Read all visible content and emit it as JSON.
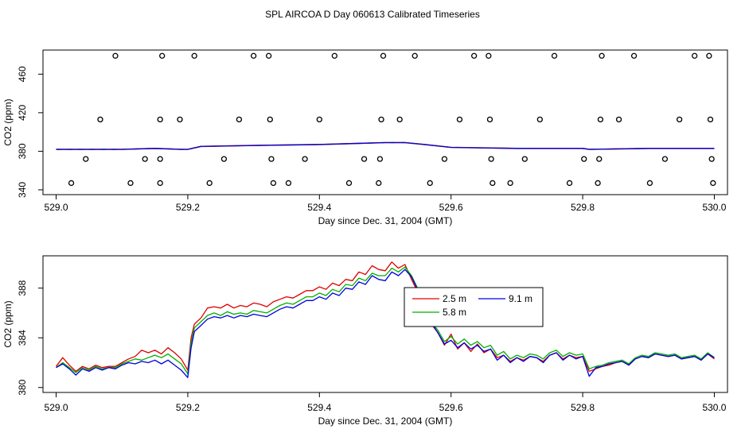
{
  "title": "SPL AIRCOA D  Day 060613  Calibrated Timeseries",
  "colors": {
    "red": "#e00000",
    "green": "#00b000",
    "blue": "#0000e0",
    "axis": "#000000"
  },
  "chart_data": [
    {
      "type": "scatter+line",
      "xlabel": "Day since Dec. 31, 2004 (GMT)",
      "ylabel": "CO2 (ppm)",
      "xlim": [
        528.98,
        530.02
      ],
      "ylim": [
        335,
        485
      ],
      "x_ticks": [
        529.0,
        529.2,
        529.4,
        529.6,
        529.8,
        530.0
      ],
      "x_tick_labels": [
        "529.0",
        "529.2",
        "529.4",
        "529.6",
        "529.8",
        "530.0"
      ],
      "y_ticks": [
        340,
        380,
        420,
        460
      ],
      "y_tick_labels": [
        "340",
        "380",
        "420",
        "460"
      ],
      "calibration_points": [
        {
          "x": 529.023,
          "y": 347
        },
        {
          "x": 529.045,
          "y": 372
        },
        {
          "x": 529.067,
          "y": 413
        },
        {
          "x": 529.09,
          "y": 479
        },
        {
          "x": 529.113,
          "y": 347
        },
        {
          "x": 529.135,
          "y": 372
        },
        {
          "x": 529.158,
          "y": 413
        },
        {
          "x": 529.161,
          "y": 479
        },
        {
          "x": 529.158,
          "y": 372
        },
        {
          "x": 529.158,
          "y": 347
        },
        {
          "x": 529.188,
          "y": 413
        },
        {
          "x": 529.21,
          "y": 479
        },
        {
          "x": 529.233,
          "y": 347
        },
        {
          "x": 529.255,
          "y": 372
        },
        {
          "x": 529.278,
          "y": 413
        },
        {
          "x": 529.3,
          "y": 479
        },
        {
          "x": 529.323,
          "y": 479
        },
        {
          "x": 529.325,
          "y": 413
        },
        {
          "x": 529.327,
          "y": 372
        },
        {
          "x": 529.33,
          "y": 347
        },
        {
          "x": 529.353,
          "y": 347
        },
        {
          "x": 529.378,
          "y": 372
        },
        {
          "x": 529.4,
          "y": 413
        },
        {
          "x": 529.423,
          "y": 479
        },
        {
          "x": 529.445,
          "y": 347
        },
        {
          "x": 529.468,
          "y": 372
        },
        {
          "x": 529.49,
          "y": 347
        },
        {
          "x": 529.492,
          "y": 372
        },
        {
          "x": 529.494,
          "y": 413
        },
        {
          "x": 529.497,
          "y": 479
        },
        {
          "x": 529.522,
          "y": 413
        },
        {
          "x": 529.545,
          "y": 479
        },
        {
          "x": 529.568,
          "y": 347
        },
        {
          "x": 529.59,
          "y": 372
        },
        {
          "x": 529.613,
          "y": 413
        },
        {
          "x": 529.635,
          "y": 479
        },
        {
          "x": 529.657,
          "y": 479
        },
        {
          "x": 529.659,
          "y": 413
        },
        {
          "x": 529.661,
          "y": 372
        },
        {
          "x": 529.663,
          "y": 347
        },
        {
          "x": 529.69,
          "y": 347
        },
        {
          "x": 529.712,
          "y": 372
        },
        {
          "x": 529.735,
          "y": 413
        },
        {
          "x": 529.757,
          "y": 479
        },
        {
          "x": 529.78,
          "y": 347
        },
        {
          "x": 529.802,
          "y": 372
        },
        {
          "x": 529.823,
          "y": 347
        },
        {
          "x": 529.825,
          "y": 372
        },
        {
          "x": 529.827,
          "y": 413
        },
        {
          "x": 529.829,
          "y": 479
        },
        {
          "x": 529.855,
          "y": 413
        },
        {
          "x": 529.878,
          "y": 479
        },
        {
          "x": 529.902,
          "y": 347
        },
        {
          "x": 529.925,
          "y": 372
        },
        {
          "x": 529.947,
          "y": 413
        },
        {
          "x": 529.97,
          "y": 479
        },
        {
          "x": 529.992,
          "y": 479
        },
        {
          "x": 529.994,
          "y": 413
        },
        {
          "x": 529.996,
          "y": 372
        },
        {
          "x": 529.998,
          "y": 347
        }
      ],
      "trace": {
        "x": [
          529.0,
          529.05,
          529.1,
          529.15,
          529.19,
          529.2,
          529.22,
          529.3,
          529.4,
          529.45,
          529.5,
          529.53,
          529.56,
          529.6,
          529.7,
          529.8,
          529.81,
          529.9,
          530.0
        ],
        "y": [
          382,
          382,
          382,
          383,
          382,
          382,
          385,
          386,
          387,
          388,
          389,
          389,
          387,
          384,
          383,
          383,
          382,
          383,
          383
        ]
      }
    },
    {
      "type": "line",
      "xlabel": "Day since Dec. 31, 2004 (GMT)",
      "ylabel": "CO2 (ppm)",
      "xlim": [
        528.98,
        530.02
      ],
      "ylim": [
        379.6,
        390.6
      ],
      "x_ticks": [
        529.0,
        529.2,
        529.4,
        529.6,
        529.8,
        530.0
      ],
      "x_tick_labels": [
        "529.0",
        "529.2",
        "529.4",
        "529.6",
        "529.8",
        "530.0"
      ],
      "y_ticks": [
        380,
        384,
        388
      ],
      "y_tick_labels": [
        "380",
        "384",
        "388"
      ],
      "legend_position": "center-right",
      "series": [
        {
          "name": "2.5 m",
          "color": "#e00000",
          "x": [
            529.0,
            529.01,
            529.02,
            529.03,
            529.04,
            529.05,
            529.06,
            529.07,
            529.08,
            529.09,
            529.1,
            529.11,
            529.12,
            529.13,
            529.14,
            529.15,
            529.16,
            529.17,
            529.18,
            529.19,
            529.2,
            529.205,
            529.21,
            529.22,
            529.23,
            529.24,
            529.25,
            529.26,
            529.27,
            529.28,
            529.29,
            529.3,
            529.31,
            529.32,
            529.33,
            529.34,
            529.35,
            529.36,
            529.37,
            529.38,
            529.39,
            529.4,
            529.41,
            529.42,
            529.43,
            529.44,
            529.45,
            529.46,
            529.47,
            529.48,
            529.49,
            529.5,
            529.51,
            529.52,
            529.53,
            529.54,
            529.55,
            529.56,
            529.57,
            529.58,
            529.59,
            529.6,
            529.61,
            529.62,
            529.63,
            529.64,
            529.65,
            529.66,
            529.67,
            529.68,
            529.69,
            529.7,
            529.71,
            529.72,
            529.73,
            529.74,
            529.75,
            529.76,
            529.77,
            529.78,
            529.79,
            529.8,
            529.81,
            529.82,
            529.83,
            529.84,
            529.85,
            529.86,
            529.87,
            529.88,
            529.89,
            529.9,
            529.91,
            529.92,
            529.93,
            529.94,
            529.95,
            529.96,
            529.97,
            529.98,
            529.99,
            530.0
          ],
          "y": [
            381.7,
            382.4,
            381.8,
            381.3,
            381.7,
            381.5,
            381.8,
            381.6,
            381.7,
            381.7,
            382.0,
            382.3,
            382.5,
            383.0,
            382.8,
            383.0,
            382.7,
            383.2,
            382.8,
            382.3,
            381.4,
            384.0,
            385.1,
            385.6,
            386.4,
            386.5,
            386.4,
            386.7,
            386.4,
            386.6,
            386.5,
            386.8,
            386.7,
            386.5,
            386.9,
            387.1,
            387.3,
            387.2,
            387.5,
            387.8,
            387.8,
            388.1,
            387.9,
            388.4,
            388.2,
            388.7,
            388.6,
            389.3,
            389.1,
            389.8,
            389.5,
            389.4,
            390.1,
            389.6,
            389.9,
            388.7,
            387.6,
            386.3,
            385.1,
            384.4,
            383.4,
            384.3,
            383.1,
            383.6,
            382.9,
            383.5,
            382.8,
            383.1,
            382.4,
            382.6,
            382.1,
            382.4,
            382.2,
            382.5,
            382.4,
            382.1,
            382.6,
            382.8,
            382.3,
            382.6,
            382.4,
            382.5,
            381.3,
            381.5,
            381.7,
            381.8,
            382.0,
            382.1,
            381.8,
            382.3,
            382.5,
            382.4,
            382.7,
            382.6,
            382.5,
            382.6,
            382.3,
            382.4,
            382.5,
            382.2,
            382.7,
            382.3
          ]
        },
        {
          "name": "5.8 m",
          "color": "#00b000",
          "x": [
            529.0,
            529.01,
            529.02,
            529.03,
            529.04,
            529.05,
            529.06,
            529.07,
            529.08,
            529.09,
            529.1,
            529.11,
            529.12,
            529.13,
            529.14,
            529.15,
            529.16,
            529.17,
            529.18,
            529.19,
            529.2,
            529.205,
            529.21,
            529.22,
            529.23,
            529.24,
            529.25,
            529.26,
            529.27,
            529.28,
            529.29,
            529.3,
            529.31,
            529.32,
            529.33,
            529.34,
            529.35,
            529.36,
            529.37,
            529.38,
            529.39,
            529.4,
            529.41,
            529.42,
            529.43,
            529.44,
            529.45,
            529.46,
            529.47,
            529.48,
            529.49,
            529.5,
            529.51,
            529.52,
            529.53,
            529.54,
            529.55,
            529.56,
            529.57,
            529.58,
            529.59,
            529.6,
            529.61,
            529.62,
            529.63,
            529.64,
            529.65,
            529.66,
            529.67,
            529.68,
            529.69,
            529.7,
            529.71,
            529.72,
            529.73,
            529.74,
            529.75,
            529.76,
            529.77,
            529.78,
            529.79,
            529.8,
            529.81,
            529.82,
            529.83,
            529.84,
            529.85,
            529.86,
            529.87,
            529.88,
            529.89,
            529.9,
            529.91,
            529.92,
            529.93,
            529.94,
            529.95,
            529.96,
            529.97,
            529.98,
            529.99,
            530.0
          ],
          "y": [
            381.6,
            382.0,
            381.6,
            381.2,
            381.6,
            381.4,
            381.7,
            381.5,
            381.6,
            381.6,
            381.9,
            382.1,
            382.3,
            382.2,
            382.4,
            382.6,
            382.4,
            382.7,
            382.3,
            381.9,
            381.1,
            383.6,
            384.8,
            385.3,
            385.8,
            386.0,
            385.8,
            386.1,
            385.9,
            386.0,
            385.9,
            386.2,
            386.1,
            386.0,
            386.3,
            386.6,
            386.8,
            386.7,
            387.0,
            387.3,
            387.3,
            387.6,
            387.4,
            387.9,
            387.7,
            388.3,
            388.2,
            388.8,
            388.6,
            389.2,
            389.0,
            389.0,
            389.6,
            389.3,
            389.7,
            389.0,
            387.9,
            386.5,
            385.3,
            384.6,
            383.7,
            384.1,
            383.5,
            383.9,
            383.4,
            383.7,
            383.2,
            383.4,
            382.6,
            382.9,
            382.3,
            382.6,
            382.4,
            382.7,
            382.6,
            382.3,
            382.8,
            383.0,
            382.5,
            382.8,
            382.6,
            382.7,
            381.5,
            381.7,
            381.8,
            382.0,
            382.1,
            382.2,
            381.9,
            382.4,
            382.6,
            382.5,
            382.8,
            382.7,
            382.6,
            382.7,
            382.4,
            382.5,
            382.6,
            382.3,
            382.8,
            382.4
          ]
        },
        {
          "name": "9.1 m",
          "color": "#0000e0",
          "x": [
            529.0,
            529.01,
            529.02,
            529.03,
            529.04,
            529.05,
            529.06,
            529.07,
            529.08,
            529.09,
            529.1,
            529.11,
            529.12,
            529.13,
            529.14,
            529.15,
            529.16,
            529.17,
            529.18,
            529.19,
            529.2,
            529.205,
            529.21,
            529.22,
            529.23,
            529.24,
            529.25,
            529.26,
            529.27,
            529.28,
            529.29,
            529.3,
            529.31,
            529.32,
            529.33,
            529.34,
            529.35,
            529.36,
            529.37,
            529.38,
            529.39,
            529.4,
            529.41,
            529.42,
            529.43,
            529.44,
            529.45,
            529.46,
            529.47,
            529.48,
            529.49,
            529.5,
            529.51,
            529.52,
            529.53,
            529.54,
            529.55,
            529.56,
            529.57,
            529.58,
            529.59,
            529.6,
            529.61,
            529.62,
            529.63,
            529.64,
            529.65,
            529.66,
            529.67,
            529.68,
            529.69,
            529.7,
            529.71,
            529.72,
            529.73,
            529.74,
            529.75,
            529.76,
            529.77,
            529.78,
            529.79,
            529.8,
            529.81,
            529.82,
            529.83,
            529.84,
            529.85,
            529.86,
            529.87,
            529.88,
            529.89,
            529.9,
            529.91,
            529.92,
            529.93,
            529.94,
            529.95,
            529.96,
            529.97,
            529.98,
            529.99,
            530.0
          ],
          "y": [
            381.6,
            381.9,
            381.5,
            381.0,
            381.5,
            381.3,
            381.6,
            381.4,
            381.6,
            381.5,
            381.8,
            382.0,
            381.9,
            382.1,
            382.0,
            382.2,
            381.9,
            382.2,
            381.8,
            381.4,
            380.8,
            383.2,
            384.5,
            385.0,
            385.5,
            385.7,
            385.6,
            385.8,
            385.6,
            385.8,
            385.7,
            385.9,
            385.8,
            385.7,
            386.0,
            386.3,
            386.5,
            386.4,
            386.7,
            387.0,
            387.0,
            387.3,
            387.1,
            387.6,
            387.4,
            388.0,
            387.9,
            388.5,
            388.3,
            389.0,
            388.7,
            388.6,
            389.3,
            389.0,
            389.5,
            388.9,
            387.8,
            386.4,
            385.2,
            384.4,
            383.5,
            383.8,
            383.2,
            383.6,
            383.1,
            383.4,
            382.9,
            383.1,
            382.2,
            382.6,
            382.0,
            382.4,
            382.1,
            382.5,
            382.4,
            382.0,
            382.6,
            382.8,
            382.2,
            382.6,
            382.3,
            382.5,
            380.9,
            381.6,
            381.7,
            381.9,
            382.0,
            382.1,
            381.8,
            382.3,
            382.5,
            382.4,
            382.7,
            382.6,
            382.5,
            382.6,
            382.3,
            382.4,
            382.5,
            382.2,
            382.7,
            382.4
          ]
        }
      ]
    }
  ]
}
